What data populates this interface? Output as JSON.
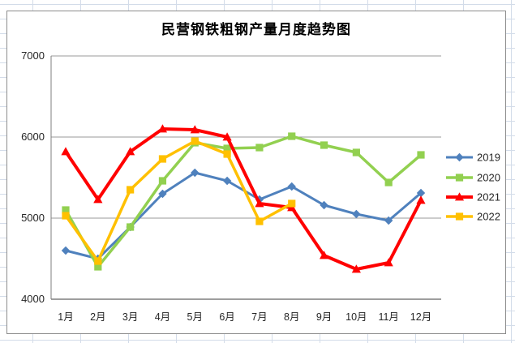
{
  "chart_data": {
    "type": "line",
    "title": "民营钢铁粗钢产量月度趋势图",
    "categories": [
      "1月",
      "2月",
      "3月",
      "4月",
      "5月",
      "6月",
      "7月",
      "8月",
      "9月",
      "10月",
      "11月",
      "12月"
    ],
    "series": [
      {
        "name": "2019",
        "color": "#4F81BD",
        "marker": "diamond",
        "stroke_width": 3,
        "values": [
          4600,
          4500,
          4890,
          5300,
          5560,
          5460,
          5230,
          5390,
          5160,
          5050,
          4970,
          5310
        ]
      },
      {
        "name": "2020",
        "color": "#92D050",
        "marker": "square",
        "stroke_width": 3.5,
        "values": [
          5100,
          4400,
          4890,
          5460,
          5930,
          5860,
          5870,
          6010,
          5900,
          5810,
          5440,
          5780
        ]
      },
      {
        "name": "2021",
        "color": "#FF0000",
        "marker": "triangle",
        "stroke_width": 4,
        "values": [
          5820,
          5230,
          5820,
          6100,
          6090,
          6000,
          5180,
          5130,
          4540,
          4370,
          4450,
          5220
        ]
      },
      {
        "name": "2022",
        "color": "#FFC000",
        "marker": "square",
        "stroke_width": 3.5,
        "values": [
          5030,
          4470,
          5350,
          5730,
          5950,
          5790,
          4960,
          5180,
          null,
          null,
          null,
          null
        ]
      }
    ],
    "ylim": [
      4000,
      7000
    ],
    "yticks": [
      7000,
      6000,
      5000,
      4000
    ],
    "xlabel": "",
    "ylabel": "",
    "grid": true,
    "legend_position": "right",
    "colors": {
      "gridline": "#9a9a9a",
      "axis_line": "#7f7f7f",
      "chart_border": "#8c8c8c",
      "sheet_gridline": "#d3dce9"
    }
  }
}
